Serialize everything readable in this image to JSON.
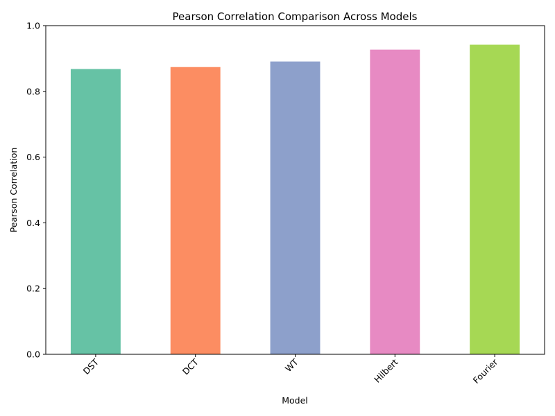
{
  "chart_data": {
    "type": "bar",
    "title": "Pearson Correlation Comparison Across Models",
    "xlabel": "Model",
    "ylabel": "Pearson Correlation",
    "categories": [
      "DST",
      "DCT",
      "WT",
      "Hilbert",
      "Fourier"
    ],
    "values": [
      0.868,
      0.874,
      0.891,
      0.927,
      0.942
    ],
    "colors": [
      "#66c2a5",
      "#fc8d62",
      "#8da0cb",
      "#e78ac3",
      "#a6d854"
    ],
    "ylim": [
      0,
      1.0
    ],
    "yticks": [
      "0.0",
      "0.2",
      "0.4",
      "0.6",
      "0.8",
      "1.0"
    ],
    "grid": false,
    "legend": "none"
  }
}
